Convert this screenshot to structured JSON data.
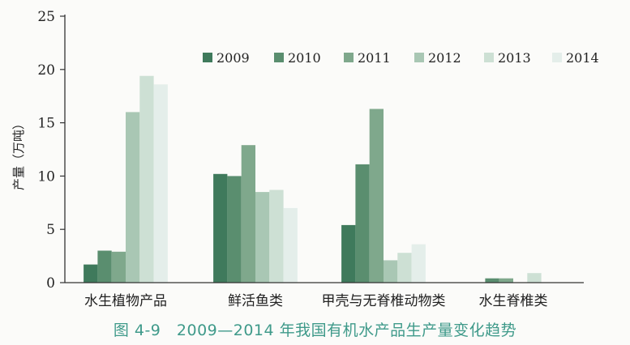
{
  "caption": "图 4-9　2009—2014 年我国有机水产品生产量变化趋势",
  "chart_data": {
    "type": "bar",
    "title": "",
    "xlabel": "",
    "ylabel": "产量（万吨）",
    "ylim": [
      0,
      25
    ],
    "yticks": [
      0,
      5,
      10,
      15,
      20,
      25
    ],
    "grid": false,
    "legend_position": "top-right",
    "categories": [
      "水生植物产品",
      "鲜活鱼类",
      "甲壳与无脊椎动物类",
      "水生脊椎类"
    ],
    "series": [
      {
        "name": "2009",
        "color": "#3f7a5c",
        "values": [
          1.7,
          10.2,
          5.4,
          0
        ]
      },
      {
        "name": "2010",
        "color": "#5a8e6f",
        "values": [
          3.0,
          10.0,
          11.1,
          0.4
        ]
      },
      {
        "name": "2011",
        "color": "#7fa88c",
        "values": [
          2.9,
          12.9,
          16.3,
          0.4
        ]
      },
      {
        "name": "2012",
        "color": "#a9c7b4",
        "values": [
          16.0,
          8.5,
          2.1,
          0
        ]
      },
      {
        "name": "2013",
        "color": "#cde0d4",
        "values": [
          19.4,
          8.7,
          2.8,
          0.9
        ]
      },
      {
        "name": "2014",
        "color": "#e4eeea",
        "values": [
          18.6,
          7.0,
          3.6,
          0
        ]
      }
    ]
  }
}
